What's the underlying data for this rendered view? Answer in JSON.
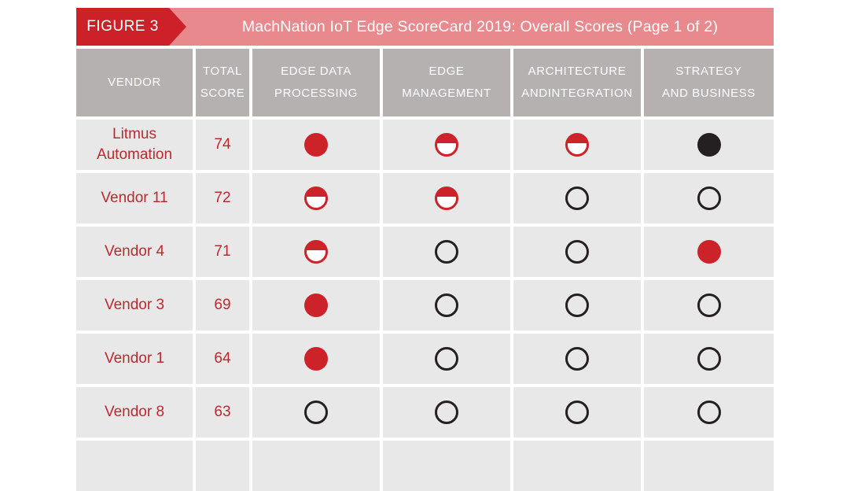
{
  "figure": {
    "label": "FIGURE 3",
    "title": "MachNation IoT Edge ScoreCard 2019: Overall Scores (Page 1 of 2)"
  },
  "header": {
    "cols": [
      {
        "line1": "VENDOR",
        "line2": ""
      },
      {
        "line1": "TOTAL",
        "line2": "SCORE"
      },
      {
        "line1": "EDGE DATA",
        "line2": "PROCESSING"
      },
      {
        "line1": "EDGE",
        "line2": "MANAGEMENT"
      },
      {
        "line1": "ARCHITECTURE",
        "line2": "ANDINTEGRATION"
      },
      {
        "line1": "STRATEGY",
        "line2": "AND BUSINESS"
      }
    ]
  },
  "chart_data": {
    "type": "table",
    "figure_label": "FIGURE 3",
    "title": "MachNation IoT Edge ScoreCard 2019: Overall Scores (Page 1 of 2)",
    "columns": [
      "VENDOR",
      "TOTAL SCORE",
      "EDGE DATA PROCESSING",
      "EDGE MANAGEMENT",
      "ARCHITECTURE ANDINTEGRATION",
      "STRATEGY AND BUSINESS"
    ],
    "rating_icon_shapes": {
      "full": "filled-red-circle",
      "half": "half-filled-red-circle",
      "empty": "empty-outlined-circle",
      "black": "filled-black-circle"
    },
    "rows": [
      {
        "vendor": "Litmus Automation",
        "total_score": 74,
        "ratings": [
          "full",
          "half",
          "half",
          "black"
        ]
      },
      {
        "vendor": "Vendor 11",
        "total_score": 72,
        "ratings": [
          "half",
          "half",
          "empty",
          "empty"
        ]
      },
      {
        "vendor": "Vendor 4",
        "total_score": 71,
        "ratings": [
          "half",
          "empty",
          "empty",
          "full"
        ]
      },
      {
        "vendor": "Vendor 3",
        "total_score": 69,
        "ratings": [
          "full",
          "empty",
          "empty",
          "empty"
        ]
      },
      {
        "vendor": "Vendor 1",
        "total_score": 64,
        "ratings": [
          "full",
          "empty",
          "empty",
          "empty"
        ]
      },
      {
        "vendor": "Vendor 8",
        "total_score": 63,
        "ratings": [
          "empty",
          "empty",
          "empty",
          "empty"
        ]
      }
    ]
  },
  "colors": {
    "figure_label_bg": "#cc2128",
    "banner_bg": "#e8898d",
    "banner_text": "#ffffff",
    "header_bg": "#b5b1b1",
    "header_text": "#ffffff",
    "cell_bg": "#e9e8e8",
    "vendor_text": "#bb2a30",
    "icon_red": "#cc2229",
    "icon_black": "#241f20"
  }
}
